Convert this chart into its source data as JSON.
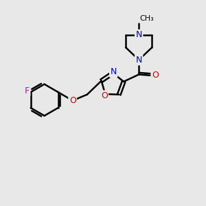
{
  "background_color": "#e8e8e8",
  "bond_color": "#000000",
  "bond_width": 1.8,
  "atom_colors": {
    "C": "#000000",
    "N": "#0000cc",
    "O": "#cc0000",
    "F": "#cc00cc"
  },
  "font_size": 8.5,
  "figsize": [
    3.0,
    3.0
  ],
  "dpi": 100
}
